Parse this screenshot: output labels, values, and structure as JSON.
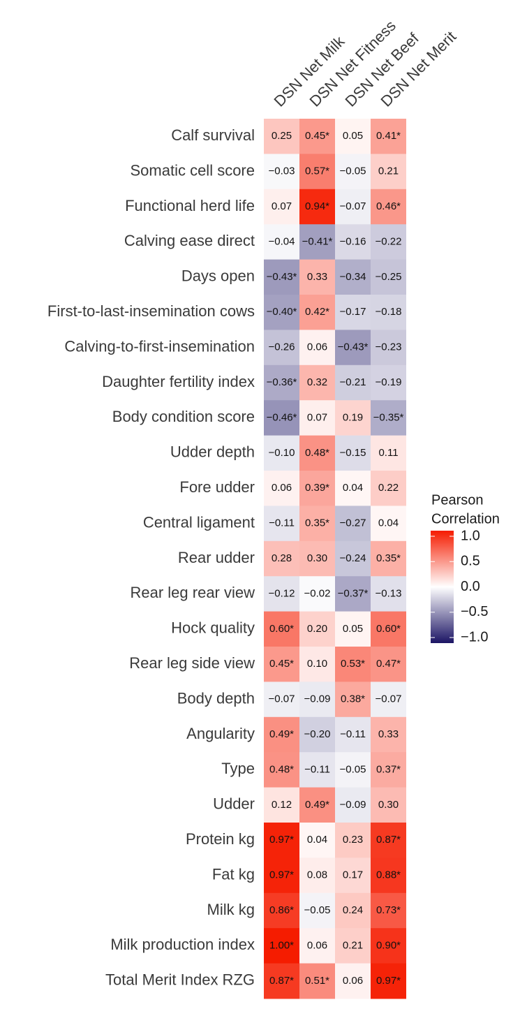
{
  "chart_data": {
    "type": "heatmap",
    "columns": [
      "DSN Net Milk",
      "DSN Net Fitness",
      "DSN Net Beef",
      "DSN Net Merit"
    ],
    "rows": [
      "Calf survival",
      "Somatic cell score",
      "Functional herd life",
      "Calving ease direct",
      "Days open",
      "First-to-last-insemination cows",
      "Calving-to-first-insemination",
      "Daughter fertility index",
      "Body condition score",
      "Udder depth",
      "Fore udder",
      "Central ligament",
      "Rear udder",
      "Rear leg rear view",
      "Hock quality",
      "Rear leg side view",
      "Body depth",
      "Angularity",
      "Type",
      "Udder",
      "Protein kg",
      "Fat kg",
      "Milk kg",
      "Milk production index",
      "Total Merit Index RZG"
    ],
    "values": [
      [
        0.25,
        0.45,
        0.05,
        0.41
      ],
      [
        -0.03,
        0.57,
        -0.05,
        0.21
      ],
      [
        0.07,
        0.94,
        -0.07,
        0.46
      ],
      [
        -0.04,
        -0.41,
        -0.16,
        -0.22
      ],
      [
        -0.43,
        0.33,
        -0.34,
        -0.25
      ],
      [
        -0.4,
        0.42,
        -0.17,
        -0.18
      ],
      [
        -0.26,
        0.06,
        -0.43,
        -0.23
      ],
      [
        -0.36,
        0.32,
        -0.21,
        -0.19
      ],
      [
        -0.46,
        0.07,
        0.19,
        -0.35
      ],
      [
        -0.1,
        0.48,
        -0.15,
        0.11
      ],
      [
        0.06,
        0.39,
        0.04,
        0.22
      ],
      [
        -0.11,
        0.35,
        -0.27,
        0.04
      ],
      [
        0.28,
        0.3,
        -0.24,
        0.35
      ],
      [
        -0.12,
        -0.02,
        -0.37,
        -0.13
      ],
      [
        0.6,
        0.2,
        0.05,
        0.6
      ],
      [
        0.45,
        0.1,
        0.53,
        0.47
      ],
      [
        -0.07,
        -0.09,
        0.38,
        -0.07
      ],
      [
        0.49,
        -0.2,
        -0.11,
        0.33
      ],
      [
        0.48,
        -0.11,
        -0.05,
        0.37
      ],
      [
        0.12,
        0.49,
        -0.09,
        0.3
      ],
      [
        0.97,
        0.04,
        0.23,
        0.87
      ],
      [
        0.97,
        0.08,
        0.17,
        0.88
      ],
      [
        0.86,
        -0.05,
        0.24,
        0.73
      ],
      [
        1.0,
        0.06,
        0.21,
        0.9
      ],
      [
        0.87,
        0.51,
        0.06,
        0.97
      ]
    ],
    "value_labels": [
      [
        "0.25",
        "0.45*",
        "0.05",
        "0.41*"
      ],
      [
        "−0.03",
        "0.57*",
        "−0.05",
        "0.21"
      ],
      [
        "0.07",
        "0.94*",
        "−0.07",
        "0.46*"
      ],
      [
        "−0.04",
        "−0.41*",
        "−0.16",
        "−0.22"
      ],
      [
        "−0.43*",
        "0.33",
        "−0.34",
        "−0.25"
      ],
      [
        "−0.40*",
        "0.42*",
        "−0.17",
        "−0.18"
      ],
      [
        "−0.26",
        "0.06",
        "−0.43*",
        "−0.23"
      ],
      [
        "−0.36*",
        "0.32",
        "−0.21",
        "−0.19"
      ],
      [
        "−0.46*",
        "0.07",
        "0.19",
        "−0.35*"
      ],
      [
        "−0.10",
        "0.48*",
        "−0.15",
        "0.11"
      ],
      [
        "0.06",
        "0.39*",
        "0.04",
        "0.22"
      ],
      [
        "−0.11",
        "0.35*",
        "−0.27",
        "0.04"
      ],
      [
        "0.28",
        "0.30",
        "−0.24",
        "0.35*"
      ],
      [
        "−0.12",
        "−0.02",
        "−0.37*",
        "−0.13"
      ],
      [
        "0.60*",
        "0.20",
        "0.05",
        "0.60*"
      ],
      [
        "0.45*",
        "0.10",
        "0.53*",
        "0.47*"
      ],
      [
        "−0.07",
        "−0.09",
        "0.38*",
        "−0.07"
      ],
      [
        "0.49*",
        "−0.20",
        "−0.11",
        "0.33"
      ],
      [
        "0.48*",
        "−0.11",
        "−0.05",
        "0.37*"
      ],
      [
        "0.12",
        "0.49*",
        "−0.09",
        "0.30"
      ],
      [
        "0.97*",
        "0.04",
        "0.23",
        "0.87*"
      ],
      [
        "0.97*",
        "0.08",
        "0.17",
        "0.88*"
      ],
      [
        "0.86*",
        "−0.05",
        "0.24",
        "0.73*"
      ],
      [
        "1.00*",
        "0.06",
        "0.21",
        "0.90*"
      ],
      [
        "0.87*",
        "0.51*",
        "0.06",
        "0.97*"
      ]
    ],
    "legend_title": [
      "Pearson",
      "Correlation"
    ],
    "colorbar_lim": [
      -1,
      1
    ],
    "colorbar_ticks": [
      {
        "value": 1,
        "label": "1.0"
      },
      0.5,
      {
        "value": 0,
        "label": "0.0"
      },
      {
        "value": -0.5,
        "label": "−0.5"
      },
      {
        "value": -1,
        "label": "−1.0"
      }
    ],
    "colors": {
      "low": "#1b1464",
      "mid": "#ffffff",
      "high": "#f51c00"
    }
  }
}
